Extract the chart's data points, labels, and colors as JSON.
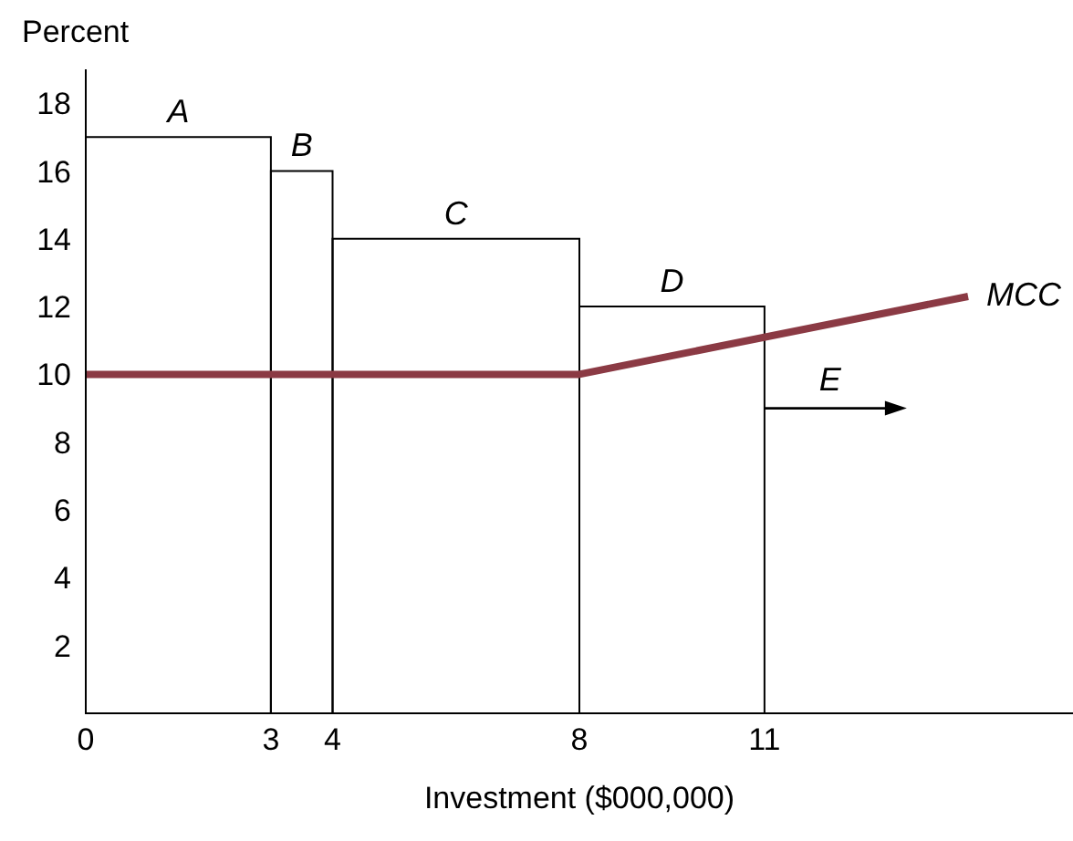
{
  "chart_data": {
    "type": "histogram",
    "xlabel": "Investment ($000,000)",
    "ylabel": "Percent",
    "bins": [
      0,
      3,
      4,
      8,
      11
    ],
    "values": [
      17,
      16,
      14,
      12
    ],
    "color": "#000000",
    "series": [
      {
        "name": "MCC",
        "type": "line",
        "color": "#8b3a44",
        "x": [
          0,
          8,
          14.3
        ],
        "values": [
          10,
          10,
          12.3
        ]
      }
    ],
    "annotations": [
      {
        "text": "A",
        "x": 1.5,
        "y": 17
      },
      {
        "text": "B",
        "x": 3.5,
        "y": 16
      },
      {
        "text": "C",
        "x": 6,
        "y": 14
      },
      {
        "text": "D",
        "x": 9.5,
        "y": 12
      },
      {
        "text": "E",
        "x": 11,
        "y": 9
      }
    ],
    "xlim": [
      0,
      16
    ],
    "xticks": [
      0,
      3,
      4,
      8,
      11
    ],
    "ylim": [
      0,
      19
    ],
    "yticks": [
      2,
      4,
      6,
      8,
      10,
      12,
      14,
      16,
      18
    ],
    "grid": false,
    "legend": false,
    "marker": "none"
  }
}
